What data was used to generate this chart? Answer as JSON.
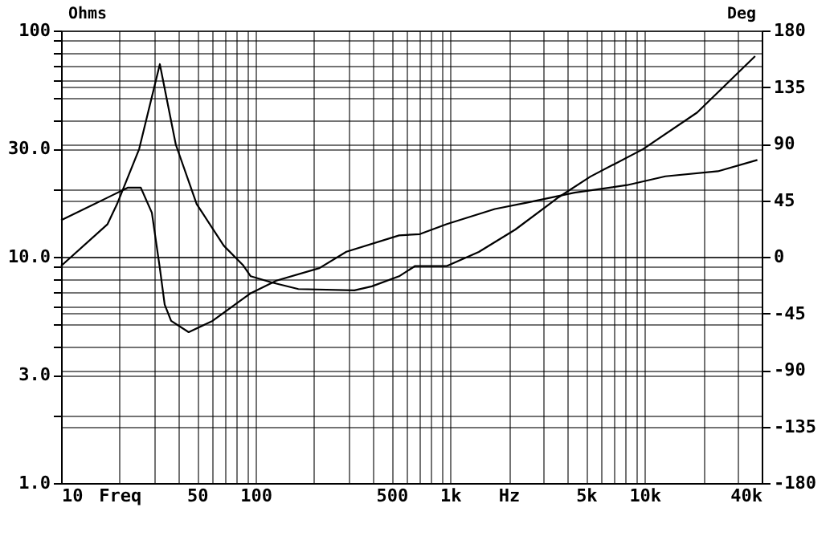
{
  "chart_data": {
    "type": "line",
    "ylabel": "Ohms",
    "y2label": "Deg",
    "log": "xy",
    "grid": true,
    "xlim": [
      10,
      40000
    ],
    "ylim": [
      1,
      100
    ],
    "y2lim": [
      -180,
      180
    ],
    "xticks": [
      10,
      {
        "value": 20,
        "label": "Freq"
      },
      {
        "value": 30,
        "label": null
      },
      {
        "value": 40,
        "label": null
      },
      50,
      {
        "value": 60,
        "label": null
      },
      {
        "value": 70,
        "label": null
      },
      {
        "value": 80,
        "label": null
      },
      {
        "value": 90,
        "label": null
      },
      100,
      {
        "value": 200,
        "label": null
      },
      {
        "value": 300,
        "label": null
      },
      {
        "value": 400,
        "label": null
      },
      500,
      {
        "value": 600,
        "label": null
      },
      {
        "value": 700,
        "label": null
      },
      {
        "value": 800,
        "label": null
      },
      {
        "value": 900,
        "label": null
      },
      {
        "value": 1000,
        "label": "1k"
      },
      {
        "value": 2000,
        "label": "Hz"
      },
      {
        "value": 3000,
        "label": null
      },
      {
        "value": 4000,
        "label": null
      },
      {
        "value": 5000,
        "label": "5k"
      },
      {
        "value": 6000,
        "label": null
      },
      {
        "value": 7000,
        "label": null
      },
      {
        "value": 8000,
        "label": null
      },
      {
        "value": 9000,
        "label": null
      },
      {
        "value": 10000,
        "label": "10k"
      },
      {
        "value": 20000,
        "label": null
      },
      {
        "value": 30000,
        "label": null
      },
      {
        "value": 40000,
        "label": "40k"
      }
    ],
    "yticks": [
      {
        "value": 1,
        "label": "1.0"
      },
      {
        "value": 2,
        "label": null
      },
      {
        "value": 3,
        "label": "3.0"
      },
      {
        "value": 4,
        "label": null
      },
      {
        "value": 5,
        "label": null
      },
      {
        "value": 6,
        "label": null
      },
      {
        "value": 7,
        "label": null
      },
      {
        "value": 8,
        "label": null
      },
      {
        "value": 9,
        "label": null
      },
      {
        "value": 10,
        "label": "10.0"
      },
      {
        "value": 20,
        "label": null
      },
      {
        "value": 30,
        "label": "30.0"
      },
      {
        "value": 40,
        "label": null
      },
      {
        "value": 50,
        "label": null
      },
      {
        "value": 60,
        "label": null
      },
      {
        "value": 70,
        "label": null
      },
      {
        "value": 80,
        "label": null
      },
      {
        "value": 90,
        "label": null
      },
      100
    ],
    "y2ticks": [
      180,
      135,
      90,
      45,
      0,
      -45,
      -90,
      -135,
      -180
    ],
    "series": [
      {
        "color": "#000000",
        "x": [
          10,
          17.3,
          19.4,
          25.2,
          32.2,
          38.9,
          49.8,
          68.6,
          86,
          94.4,
          121,
          166,
          322,
          396,
          547,
          661,
          963,
          1405,
          2168,
          3606,
          5262,
          9820,
          18630,
          37000
        ],
        "values": [
          9.1,
          13.9,
          17.1,
          29.9,
          71,
          31.3,
          17.1,
          11.2,
          9.2,
          8.2,
          7.7,
          7.2,
          7.1,
          7.4,
          8.2,
          9.1,
          9.1,
          10.5,
          13.2,
          18.3,
          22.6,
          29.9,
          43.4,
          77
        ]
      },
      {
        "color": "#000000",
        "axis": "y2",
        "x": [
          10,
          17.3,
          22.1,
          25.7,
          29.3,
          32.2,
          34.1,
          36.8,
          45.3,
          60.1,
          94.4,
          128,
          213,
          293,
          547,
          699,
          963,
          1698,
          2474,
          4357,
          8122,
          12790,
          23820,
          38000
        ],
        "values": [
          29,
          47,
          55,
          55,
          35,
          -9,
          -38,
          -51,
          -60,
          -51,
          -29,
          -19,
          -9,
          4,
          17,
          18,
          26,
          38,
          43,
          51,
          57,
          64,
          68,
          77
        ]
      }
    ]
  }
}
